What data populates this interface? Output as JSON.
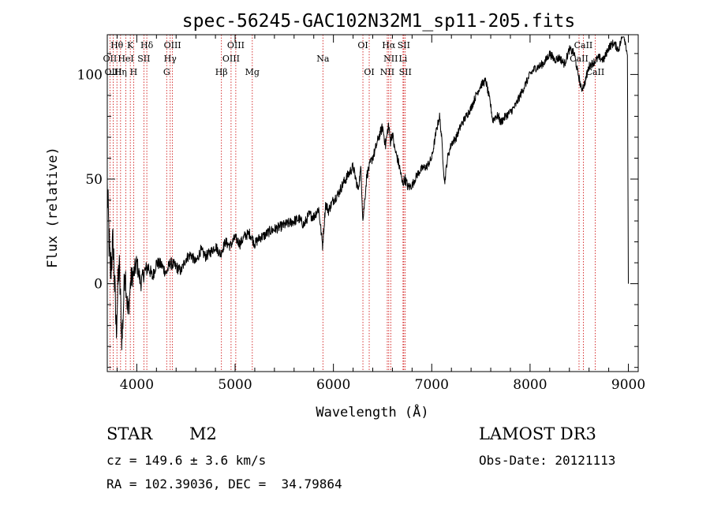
{
  "chart_data": {
    "type": "line",
    "title": "spec-56245-GAC102N32M1_sp11-205.fits",
    "xlabel": "Wavelength (Å)",
    "ylabel": "Flux (relative)",
    "xlim": [
      3700,
      9100
    ],
    "ylim": [
      -42,
      119
    ],
    "x_ticks": [
      4000,
      5000,
      6000,
      7000,
      8000,
      9000
    ],
    "y_ticks": [
      0,
      50,
      100
    ],
    "grid": false,
    "series": [
      {
        "name": "flux",
        "color": "#000000",
        "x": [
          3700,
          3730,
          3760,
          3790,
          3820,
          3850,
          3880,
          3910,
          3940,
          3970,
          4000,
          4040,
          4080,
          4120,
          4160,
          4200,
          4250,
          4300,
          4340,
          4400,
          4450,
          4500,
          4550,
          4600,
          4650,
          4700,
          4750,
          4800,
          4850,
          4900,
          4950,
          5000,
          5050,
          5100,
          5150,
          5200,
          5250,
          5300,
          5350,
          5400,
          5450,
          5500,
          5550,
          5600,
          5650,
          5700,
          5750,
          5800,
          5850,
          5890,
          5920,
          5950,
          6000,
          6050,
          6100,
          6150,
          6200,
          6250,
          6280,
          6300,
          6340,
          6380,
          6420,
          6460,
          6500,
          6530,
          6560,
          6580,
          6600,
          6620,
          6650,
          6680,
          6700,
          6730,
          6760,
          6800,
          6850,
          6900,
          6950,
          7000,
          7050,
          7080,
          7100,
          7130,
          7160,
          7200,
          7250,
          7300,
          7350,
          7400,
          7450,
          7500,
          7550,
          7600,
          7620,
          7650,
          7680,
          7700,
          7750,
          7800,
          7850,
          7900,
          7950,
          8000,
          8050,
          8100,
          8150,
          8200,
          8250,
          8300,
          8350,
          8400,
          8450,
          8480,
          8500,
          8520,
          8550,
          8580,
          8600,
          8650,
          8700,
          8750,
          8800,
          8850,
          8900,
          8950,
          8990,
          9000
        ],
        "y": [
          45,
          5,
          20,
          -22,
          10,
          -28,
          8,
          -15,
          2,
          5,
          10,
          0,
          6,
          8,
          3,
          10,
          9,
          5,
          10,
          8,
          6,
          12,
          14,
          10,
          16,
          13,
          15,
          18,
          14,
          20,
          18,
          22,
          19,
          23,
          24,
          19,
          22,
          23,
          25,
          26,
          27,
          28,
          29,
          30,
          31,
          28,
          33,
          32,
          36,
          18,
          38,
          35,
          40,
          43,
          48,
          52,
          56,
          45,
          55,
          30,
          52,
          58,
          63,
          70,
          75,
          66,
          76,
          68,
          72,
          65,
          60,
          54,
          48,
          50,
          46,
          47,
          52,
          55,
          56,
          60,
          74,
          80,
          70,
          48,
          60,
          67,
          70,
          76,
          80,
          84,
          90,
          95,
          97,
          85,
          78,
          80,
          80,
          77,
          80,
          82,
          85,
          90,
          95,
          100,
          103,
          104,
          106,
          110,
          107,
          108,
          105,
          112,
          110,
          102,
          98,
          93,
          95,
          100,
          104,
          106,
          108,
          107,
          113,
          115,
          112,
          120,
          110,
          0
        ],
        "noise": [
          12,
          12,
          11,
          11,
          10,
          9,
          8,
          7,
          6,
          5,
          5,
          4,
          4,
          4,
          3,
          3,
          3,
          3,
          3,
          3,
          2.5,
          2.5,
          2.5,
          2.5,
          2.5,
          2.5,
          2.5,
          2.5,
          2.5,
          2.5,
          2.5,
          2.5,
          2.5,
          2.5,
          2.5,
          2.5,
          2.5,
          2.5,
          2.5,
          2.5,
          2.5,
          2.5,
          2.5,
          2.5,
          2.5,
          2.5,
          2.5,
          2.5,
          2.5,
          2.5,
          2.5,
          2.5,
          2.5,
          2.5,
          2.5,
          2.5,
          2.5,
          2.5,
          2.5,
          2.5,
          2.5,
          2.5,
          2.5,
          2.5,
          2.5,
          2.5,
          2.5,
          2.5,
          2.5,
          2.5,
          2.5,
          2.5,
          2.5,
          2.5,
          2.5,
          2,
          2,
          2,
          2,
          2,
          2,
          2,
          2,
          2,
          2,
          2,
          2,
          2,
          2,
          2,
          2,
          2,
          2,
          2,
          2,
          2,
          2,
          2,
          2,
          2,
          2,
          2,
          2,
          2,
          2,
          2,
          2,
          2,
          2,
          2,
          2,
          2,
          2,
          2,
          2,
          2,
          2,
          2,
          2,
          2,
          2,
          2,
          2,
          2,
          2,
          2,
          2,
          2
        ]
      }
    ],
    "spectral_lines": [
      {
        "label": "OII",
        "wavelength": 3727,
        "row": 2
      },
      {
        "label": "Hθ",
        "wavelength": 3798,
        "row": 1
      },
      {
        "label": "OIII",
        "wavelength": 3760,
        "row": 3
      },
      {
        "label": "Hη",
        "wavelength": 3835,
        "row": 3
      },
      {
        "label": "HeI",
        "wavelength": 3889,
        "row": 2
      },
      {
        "label": "K",
        "wavelength": 3934,
        "row": 1
      },
      {
        "label": "H",
        "wavelength": 3968,
        "row": 3
      },
      {
        "label": "SII",
        "wavelength": 4072,
        "row": 2
      },
      {
        "label": "Hδ",
        "wavelength": 4102,
        "row": 1
      },
      {
        "label": "G",
        "wavelength": 4304,
        "row": 3
      },
      {
        "label": "Hγ",
        "wavelength": 4340,
        "row": 2
      },
      {
        "label": "OIII",
        "wavelength": 4363,
        "row": 1
      },
      {
        "label": "Hβ",
        "wavelength": 4861,
        "row": 3
      },
      {
        "label": "OIII",
        "wavelength": 4959,
        "row": 2
      },
      {
        "label": "OIII",
        "wavelength": 5007,
        "row": 1
      },
      {
        "label": "Mg",
        "wavelength": 5175,
        "row": 3
      },
      {
        "label": "Na",
        "wavelength": 5893,
        "row": 2
      },
      {
        "label": "OI",
        "wavelength": 6300,
        "row": 1
      },
      {
        "label": "OI",
        "wavelength": 6364,
        "row": 3
      },
      {
        "label": "NII",
        "wavelength": 6548,
        "row": 3
      },
      {
        "label": "Hα",
        "wavelength": 6563,
        "row": 1
      },
      {
        "label": "NII",
        "wavelength": 6583,
        "row": 2
      },
      {
        "label": "SII",
        "wavelength": 6716,
        "row": 1
      },
      {
        "label": "Li",
        "wavelength": 6708,
        "row": 2
      },
      {
        "label": "SII",
        "wavelength": 6731,
        "row": 3
      },
      {
        "label": "CaII",
        "wavelength": 8498,
        "row": 2
      },
      {
        "label": "CaII",
        "wavelength": 8542,
        "row": 1
      },
      {
        "label": "CaII",
        "wavelength": 8662,
        "row": 3
      }
    ],
    "line_marker_color": "#cc0000"
  },
  "info": {
    "object_type": "STAR",
    "subclass": "M2",
    "survey": "LAMOST DR3",
    "redshift": "cz = 149.6 ± 3.6 km/s",
    "obs_date": "Obs-Date: 20121113",
    "coordinates": "RA = 102.39036, DEC =  34.79864"
  }
}
